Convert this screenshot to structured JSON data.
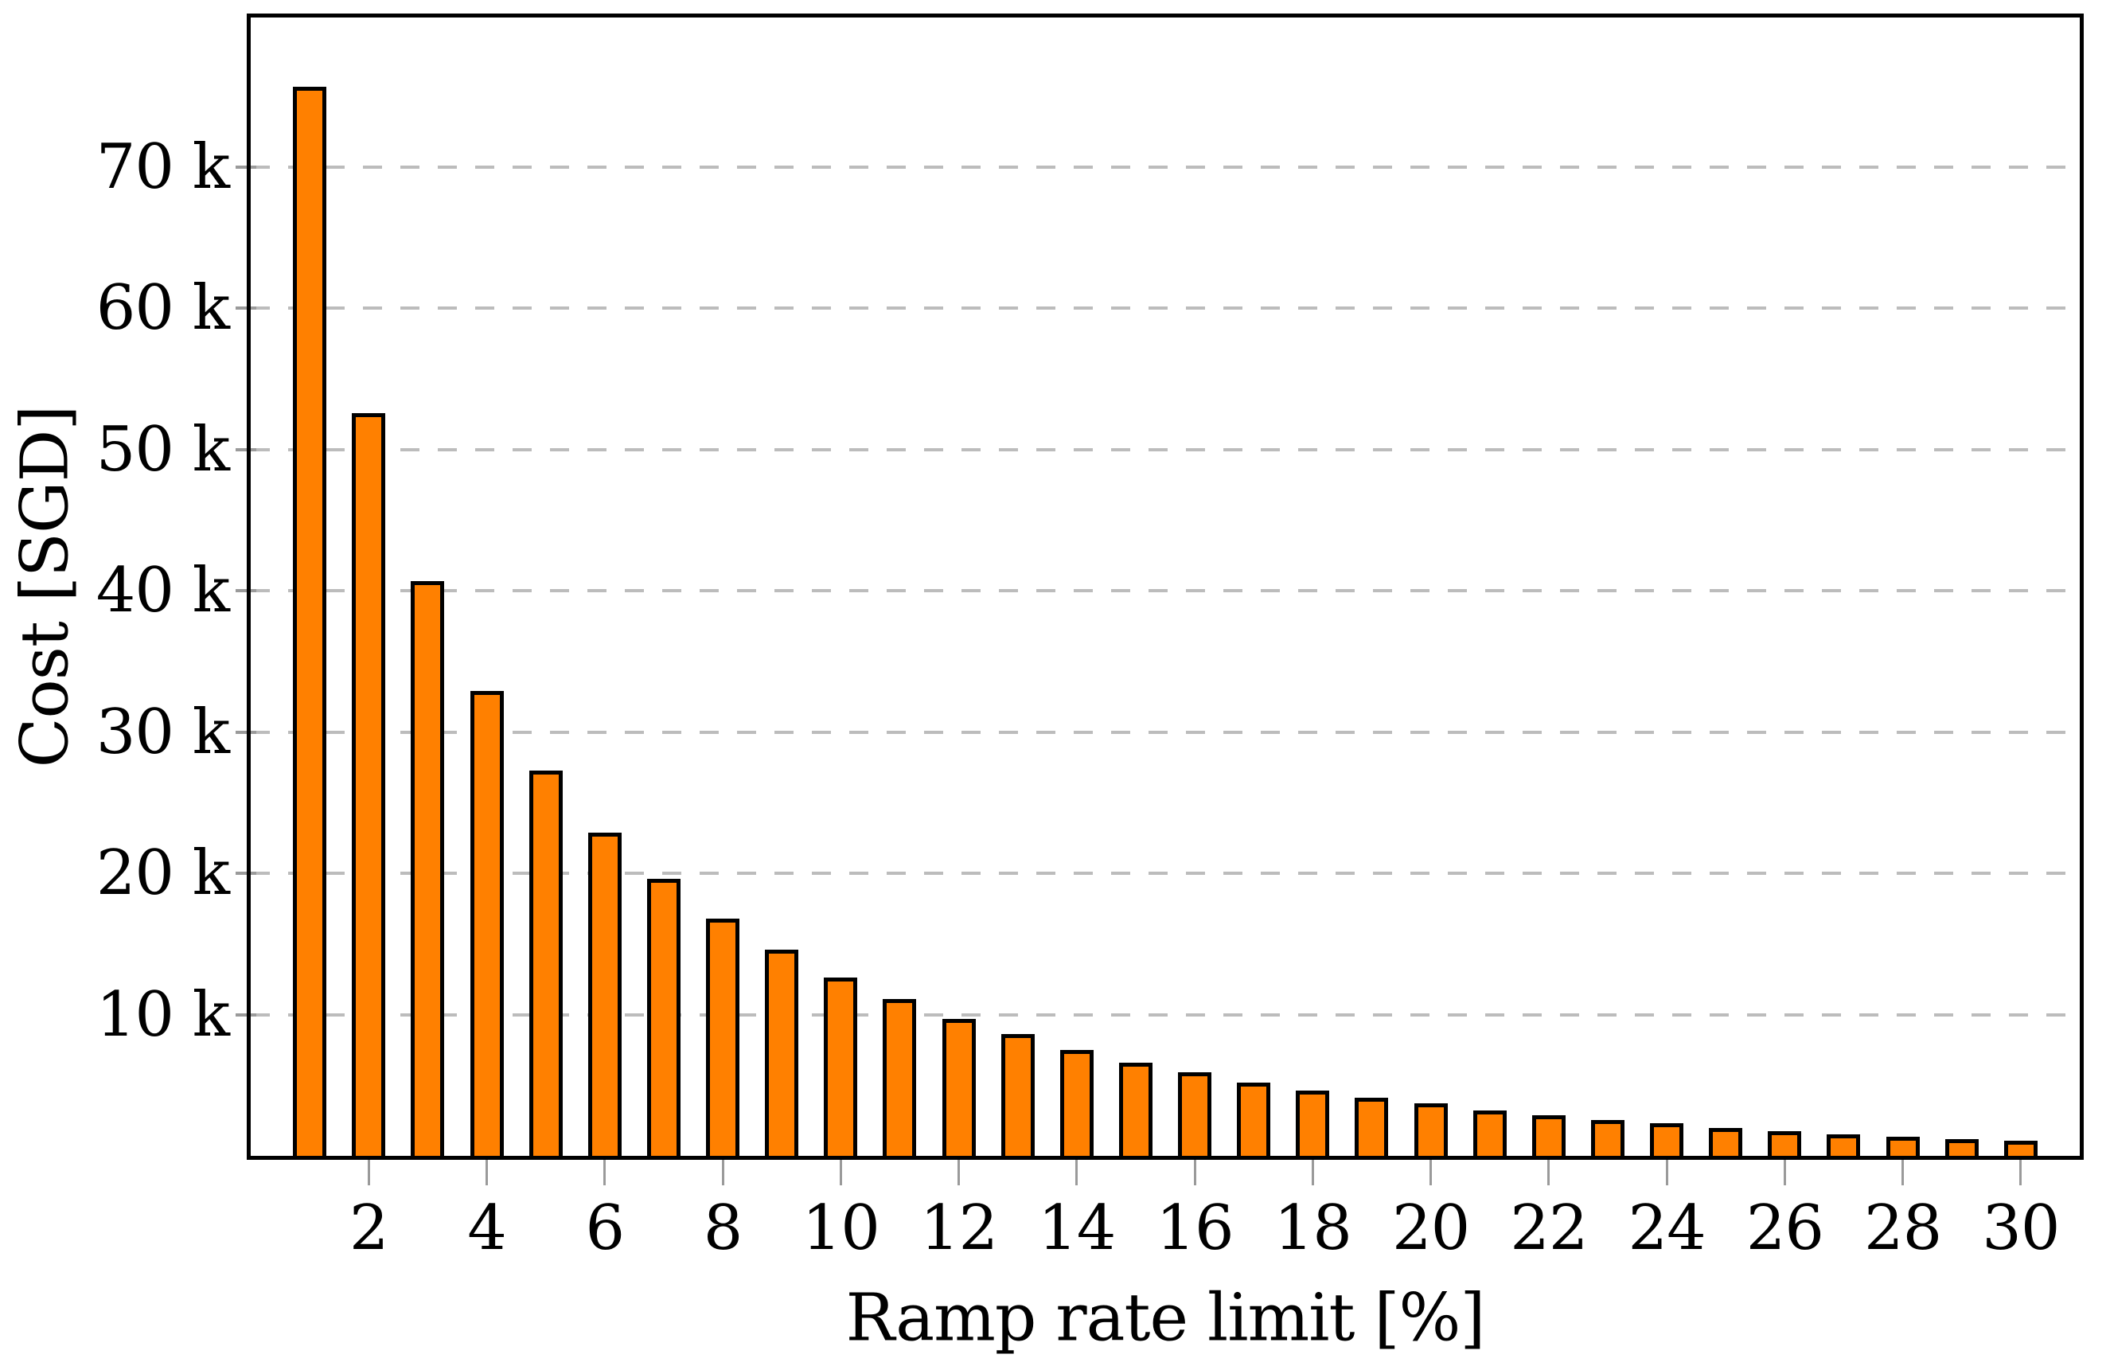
{
  "figure": {
    "background": "#ffffff"
  },
  "chart_data": {
    "type": "bar",
    "title": "",
    "xlabel": "Ramp rate limit [%]",
    "ylabel": "Cost [SGD]",
    "x": [
      1,
      2,
      3,
      4,
      5,
      6,
      7,
      8,
      9,
      10,
      11,
      12,
      13,
      14,
      15,
      16,
      17,
      18,
      19,
      20,
      21,
      22,
      23,
      24,
      25,
      26,
      27,
      28,
      29,
      30
    ],
    "values": [
      75700,
      52600,
      40700,
      32900,
      27300,
      22900,
      19600,
      16800,
      14600,
      12600,
      11100,
      9700,
      8600,
      7500,
      6600,
      5900,
      5200,
      4600,
      4100,
      3700,
      3200,
      2850,
      2550,
      2300,
      2000,
      1750,
      1550,
      1350,
      1200,
      1050
    ],
    "xlim": [
      0,
      31
    ],
    "ylim": [
      0,
      80600
    ],
    "x_ticks": [
      2,
      4,
      6,
      8,
      10,
      12,
      14,
      16,
      18,
      20,
      22,
      24,
      26,
      28,
      30
    ],
    "x_tick_labels": [
      "2",
      "4",
      "6",
      "8",
      "10",
      "12",
      "14",
      "16",
      "18",
      "20",
      "22",
      "24",
      "26",
      "28",
      "30"
    ],
    "y_ticks": [
      10000,
      20000,
      30000,
      40000,
      50000,
      60000,
      70000
    ],
    "y_tick_labels": [
      "10 k",
      "20 k",
      "30 k",
      "40 k",
      "50 k",
      "60 k",
      "70 k"
    ],
    "grid": "horizontal-dashed",
    "legend": "none",
    "colors": {
      "bar_fill": "#FF8000",
      "bar_border": "#000000",
      "gridline": "#BCBCBC",
      "tick": "#9A9A9A",
      "axis_frame": "#000000",
      "text": "#000000"
    }
  }
}
